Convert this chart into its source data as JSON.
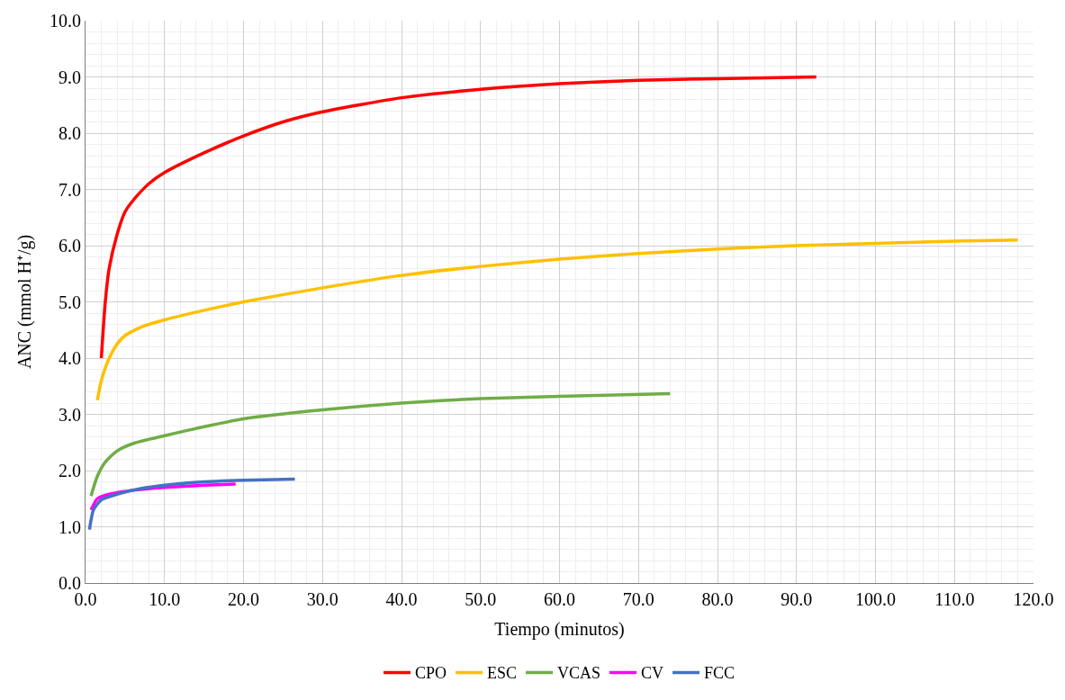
{
  "chart_data": {
    "type": "line",
    "xlabel": "Tiempo (minutos)",
    "ylabel": "ANC (mmol H⁺/g)",
    "xlim": [
      0,
      120
    ],
    "ylim": [
      0,
      10
    ],
    "xticks": [
      {
        "value": 0,
        "label": "0.0"
      },
      {
        "value": 10,
        "label": "10.0"
      },
      {
        "value": 20,
        "label": "20.0"
      },
      {
        "value": 30,
        "label": "30.0"
      },
      {
        "value": 40,
        "label": "40.0"
      },
      {
        "value": 50,
        "label": "50.0"
      },
      {
        "value": 60,
        "label": "60.0"
      },
      {
        "value": 70,
        "label": "70.0"
      },
      {
        "value": 80,
        "label": "80.0"
      },
      {
        "value": 90,
        "label": "90.0"
      },
      {
        "value": 100,
        "label": "100.0"
      },
      {
        "value": 110,
        "label": "110.0"
      },
      {
        "value": 120,
        "label": "120.0"
      }
    ],
    "yticks": [
      {
        "value": 0,
        "label": "0.0"
      },
      {
        "value": 1,
        "label": "1.0"
      },
      {
        "value": 2,
        "label": "2.0"
      },
      {
        "value": 3,
        "label": "3.0"
      },
      {
        "value": 4,
        "label": "4.0"
      },
      {
        "value": 5,
        "label": "5.0"
      },
      {
        "value": 6,
        "label": "6.0"
      },
      {
        "value": 7,
        "label": "7.0"
      },
      {
        "value": 8,
        "label": "8.0"
      },
      {
        "value": 9,
        "label": "9.0"
      },
      {
        "value": 10,
        "label": "10.0"
      }
    ],
    "grid": true,
    "legend": "bottom",
    "marker": "none",
    "line_style": "solid",
    "series": [
      {
        "name": "CPO",
        "color": "#ff0000",
        "x": [
          2.0,
          2.5,
          3,
          4,
          5,
          6,
          8,
          10,
          15,
          20,
          25,
          30,
          40,
          50,
          60,
          70,
          80,
          92.5
        ],
        "values": [
          4.0,
          5.0,
          5.6,
          6.2,
          6.6,
          6.8,
          7.1,
          7.3,
          7.65,
          7.95,
          8.2,
          8.38,
          8.63,
          8.78,
          8.88,
          8.94,
          8.97,
          9.0
        ]
      },
      {
        "name": "ESC",
        "color": "#ffc000",
        "x": [
          1.5,
          2,
          3,
          4,
          5,
          7,
          10,
          15,
          20,
          30,
          40,
          50,
          60,
          70,
          80,
          90,
          100,
          110,
          118
        ],
        "values": [
          3.25,
          3.6,
          4.0,
          4.25,
          4.4,
          4.55,
          4.68,
          4.85,
          5.0,
          5.25,
          5.47,
          5.63,
          5.76,
          5.86,
          5.94,
          6.0,
          6.04,
          6.08,
          6.1
        ]
      },
      {
        "name": "VCAS",
        "color": "#70ad47",
        "x": [
          0.7,
          1.5,
          2.5,
          4,
          6,
          10,
          15,
          20,
          30,
          40,
          50,
          60,
          74
        ],
        "values": [
          1.55,
          1.9,
          2.15,
          2.35,
          2.48,
          2.62,
          2.78,
          2.92,
          3.08,
          3.2,
          3.28,
          3.32,
          3.37
        ]
      },
      {
        "name": "CV",
        "color": "#ff00ff",
        "x": [
          0.7,
          1.5,
          3,
          6,
          10,
          15,
          19
        ],
        "values": [
          1.3,
          1.5,
          1.58,
          1.65,
          1.7,
          1.74,
          1.76
        ]
      },
      {
        "name": "FCC",
        "color": "#4472c4",
        "x": [
          0.5,
          1,
          2,
          4,
          7,
          10,
          15,
          20,
          26.5
        ],
        "values": [
          0.95,
          1.3,
          1.48,
          1.58,
          1.68,
          1.74,
          1.8,
          1.83,
          1.85
        ]
      }
    ]
  }
}
